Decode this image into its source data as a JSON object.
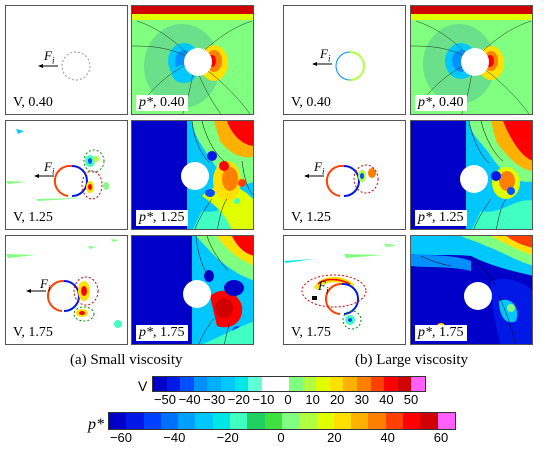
{
  "panels": [
    {
      "id": "a-v-040",
      "label_var": "V",
      "label_time": "0.40",
      "force": "F",
      "force_sub": "i"
    },
    {
      "id": "a-p-040",
      "label_var": "p*",
      "label_time": "0.40"
    },
    {
      "id": "b-v-040",
      "label_var": "V",
      "label_time": "0.40",
      "force": "F",
      "force_sub": "i"
    },
    {
      "id": "b-p-040",
      "label_var": "p*",
      "label_time": "0.40"
    },
    {
      "id": "a-v-125",
      "label_var": "V",
      "label_time": "1.25",
      "force": "F",
      "force_sub": "i"
    },
    {
      "id": "a-p-125",
      "label_var": "p*",
      "label_time": "1.25"
    },
    {
      "id": "b-v-125",
      "label_var": "V",
      "label_time": "1.25",
      "force": "F",
      "force_sub": "i"
    },
    {
      "id": "b-p-125",
      "label_var": "p*",
      "label_time": "1.25"
    },
    {
      "id": "a-v-175",
      "label_var": "V",
      "label_time": "1.75",
      "force": "F",
      "force_sub": "i"
    },
    {
      "id": "a-p-175",
      "label_var": "p*",
      "label_time": "1.75"
    },
    {
      "id": "b-v-175",
      "label_var": "V",
      "label_time": "1.75",
      "force": "F",
      "force_sub": "i"
    },
    {
      "id": "b-p-175",
      "label_var": "p*",
      "label_time": "1.75"
    }
  ],
  "captions": {
    "left": "(a) Small viscosity",
    "right": "(b) Large viscosity"
  },
  "colorbar_v": {
    "label": "V",
    "ticks": [
      "−50",
      "−40",
      "−30",
      "−20",
      "−10",
      "0",
      "10",
      "20",
      "30",
      "40",
      "50"
    ]
  },
  "colorbar_p": {
    "label": "p*",
    "ticks": [
      "−60",
      "−40",
      "−20",
      "0",
      "20",
      "40",
      "60"
    ]
  },
  "palette": [
    "#0000c8",
    "#0019e6",
    "#0050ff",
    "#0090ff",
    "#00c8ff",
    "#00e6e6",
    "#40ffc0",
    "#80ff80",
    "#b0ff40",
    "#e0ff00",
    "#ffe000",
    "#ffb000",
    "#ff8000",
    "#ff4000",
    "#ff0000",
    "#d00000"
  ]
}
